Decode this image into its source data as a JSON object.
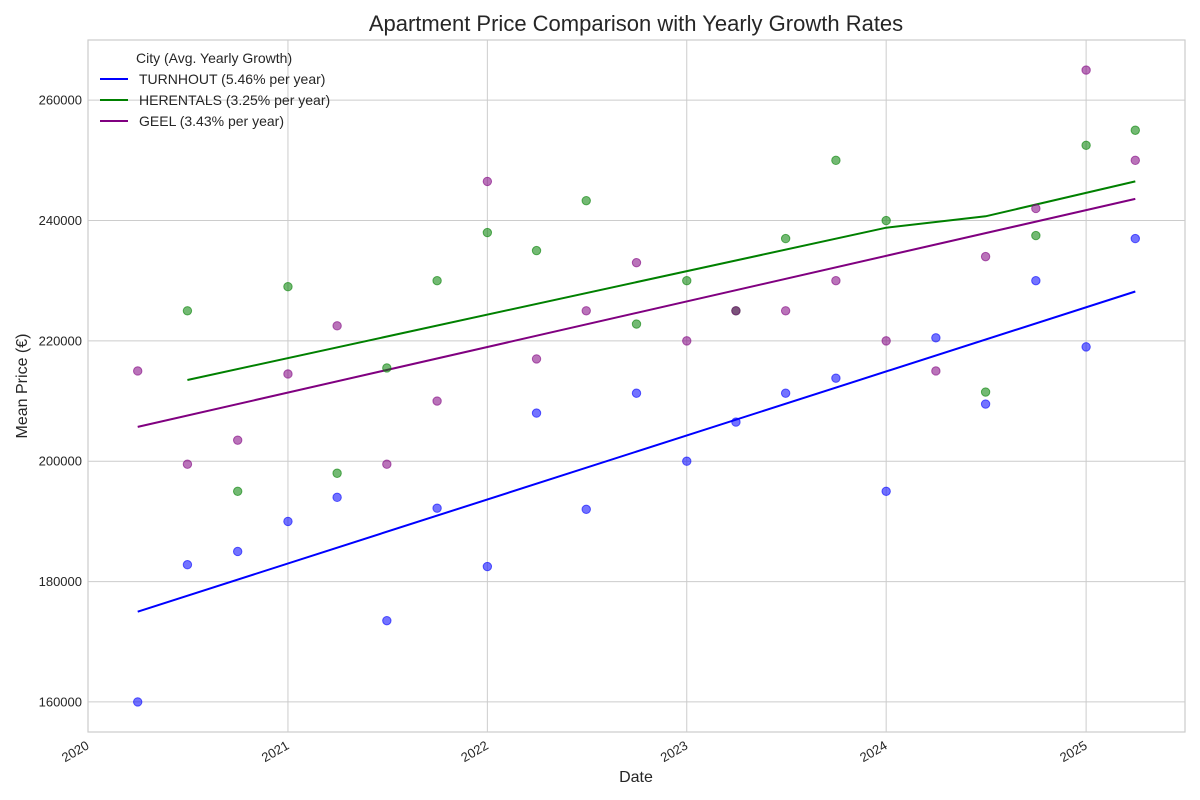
{
  "chart_data": {
    "type": "scatter",
    "title": "Apartment Price Comparison with Yearly Growth Rates",
    "xlabel": "Date",
    "ylabel": "Mean Price (€)",
    "xlim": [
      "2020-01-01",
      "2025-07-01"
    ],
    "ylim": [
      155000,
      270000
    ],
    "x_ticks": [
      "2020",
      "2021",
      "2022",
      "2023",
      "2024",
      "2025"
    ],
    "y_ticks": [
      160000,
      180000,
      200000,
      220000,
      240000,
      260000
    ],
    "grid": true,
    "legend": {
      "title": "City (Avg. Yearly Growth)",
      "placement": "top-left"
    },
    "series": [
      {
        "name": "TURNHOUT (5.46% per year)",
        "color": "#0000ff",
        "points": [
          {
            "x": "2020-04-01",
            "y": 160000
          },
          {
            "x": "2020-07-01",
            "y": 182800
          },
          {
            "x": "2020-10-01",
            "y": 185000
          },
          {
            "x": "2021-01-01",
            "y": 190000
          },
          {
            "x": "2021-04-01",
            "y": 194000
          },
          {
            "x": "2021-07-01",
            "y": 173500
          },
          {
            "x": "2021-10-01",
            "y": 192200
          },
          {
            "x": "2022-01-01",
            "y": 182500
          },
          {
            "x": "2022-04-01",
            "y": 208000
          },
          {
            "x": "2022-07-01",
            "y": 192000
          },
          {
            "x": "2022-10-01",
            "y": 211300
          },
          {
            "x": "2023-01-01",
            "y": 200000
          },
          {
            "x": "2023-04-01",
            "y": 206500
          },
          {
            "x": "2023-07-01",
            "y": 211300
          },
          {
            "x": "2023-10-01",
            "y": 213800
          },
          {
            "x": "2024-01-01",
            "y": 195000
          },
          {
            "x": "2024-04-01",
            "y": 220500
          },
          {
            "x": "2024-07-01",
            "y": 209500
          },
          {
            "x": "2024-10-01",
            "y": 230000
          },
          {
            "x": "2025-01-01",
            "y": 219000
          },
          {
            "x": "2025-04-01",
            "y": 237000
          }
        ],
        "trend": [
          {
            "x": "2020-04-01",
            "y": 175000
          },
          {
            "x": "2025-04-01",
            "y": 228200
          }
        ]
      },
      {
        "name": "HERENTALS (3.25% per year)",
        "color": "#008000",
        "points": [
          {
            "x": "2020-07-01",
            "y": 225000
          },
          {
            "x": "2020-10-01",
            "y": 195000
          },
          {
            "x": "2021-01-01",
            "y": 229000
          },
          {
            "x": "2021-04-01",
            "y": 198000
          },
          {
            "x": "2021-07-01",
            "y": 215500
          },
          {
            "x": "2021-10-01",
            "y": 230000
          },
          {
            "x": "2022-01-01",
            "y": 238000
          },
          {
            "x": "2022-04-01",
            "y": 235000
          },
          {
            "x": "2022-07-01",
            "y": 243300
          },
          {
            "x": "2022-10-01",
            "y": 222800
          },
          {
            "x": "2023-01-01",
            "y": 230000
          },
          {
            "x": "2023-04-01",
            "y": 225000
          },
          {
            "x": "2023-07-01",
            "y": 237000
          },
          {
            "x": "2023-10-01",
            "y": 250000
          },
          {
            "x": "2024-01-01",
            "y": 240000
          },
          {
            "x": "2024-07-01",
            "y": 211500
          },
          {
            "x": "2024-10-01",
            "y": 237500
          },
          {
            "x": "2025-01-01",
            "y": 252500
          },
          {
            "x": "2025-04-01",
            "y": 255000
          }
        ],
        "trend": [
          {
            "x": "2020-07-01",
            "y": 213500
          },
          {
            "x": "2024-01-01",
            "y": 238800
          },
          {
            "x": "2024-07-01",
            "y": 240700
          },
          {
            "x": "2025-04-01",
            "y": 246500
          }
        ]
      },
      {
        "name": "GEEL (3.43% per year)",
        "color": "#800080",
        "points": [
          {
            "x": "2020-04-01",
            "y": 215000
          },
          {
            "x": "2020-07-01",
            "y": 199500
          },
          {
            "x": "2020-10-01",
            "y": 203500
          },
          {
            "x": "2021-01-01",
            "y": 214500
          },
          {
            "x": "2021-04-01",
            "y": 222500
          },
          {
            "x": "2021-07-01",
            "y": 199500
          },
          {
            "x": "2021-10-01",
            "y": 210000
          },
          {
            "x": "2022-01-01",
            "y": 246500
          },
          {
            "x": "2022-04-01",
            "y": 217000
          },
          {
            "x": "2022-07-01",
            "y": 225000
          },
          {
            "x": "2022-10-01",
            "y": 233000
          },
          {
            "x": "2023-01-01",
            "y": 220000
          },
          {
            "x": "2023-04-01",
            "y": 225000
          },
          {
            "x": "2023-07-01",
            "y": 225000
          },
          {
            "x": "2023-10-01",
            "y": 230000
          },
          {
            "x": "2024-01-01",
            "y": 220000
          },
          {
            "x": "2024-04-01",
            "y": 215000
          },
          {
            "x": "2024-07-01",
            "y": 234000
          },
          {
            "x": "2024-10-01",
            "y": 242000
          },
          {
            "x": "2025-01-01",
            "y": 265000
          },
          {
            "x": "2025-04-01",
            "y": 250000
          }
        ],
        "trend": [
          {
            "x": "2020-04-01",
            "y": 205700
          },
          {
            "x": "2025-04-01",
            "y": 243600
          }
        ]
      }
    ]
  }
}
